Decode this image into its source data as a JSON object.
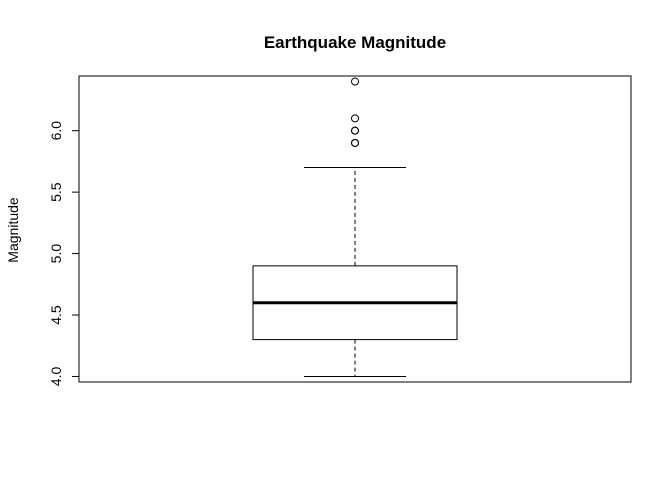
{
  "chart_data": {
    "type": "boxplot",
    "title": "Earthquake Magnitude",
    "xlabel": "",
    "ylabel": "Magnitude",
    "ylim": [
      3.955,
      6.445
    ],
    "yticks": [
      4.0,
      4.5,
      5.0,
      5.5,
      6.0
    ],
    "ytick_labels": [
      "4.0",
      "4.5",
      "5.0",
      "5.5",
      "6.0"
    ],
    "grid": false,
    "box": {
      "whisker_low": 4.0,
      "q1": 4.3,
      "median": 4.6,
      "q3": 4.9,
      "whisker_high": 5.7
    },
    "outliers": [
      5.9,
      5.9,
      6.0,
      6.0,
      6.1,
      6.4
    ]
  }
}
